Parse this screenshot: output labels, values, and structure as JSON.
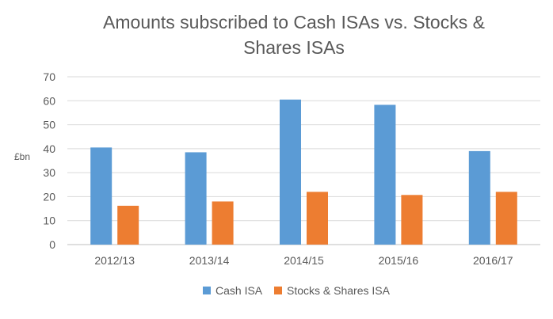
{
  "chart_data": {
    "type": "bar",
    "title_line1": "Amounts subscribed to Cash ISAs vs. Stocks &",
    "title_line2": "Shares ISAs",
    "xlabel": "",
    "ylabel": "£bn",
    "ylim": [
      0,
      70
    ],
    "yticks": [
      "0",
      "10",
      "20",
      "30",
      "40",
      "50",
      "60",
      "70"
    ],
    "grid": true,
    "legend_position": "bottom",
    "categories": [
      "2012/13",
      "2013/14",
      "2014/15",
      "2015/16",
      "2016/17"
    ],
    "series": [
      {
        "name": "Cash ISA",
        "color": "#5b9bd5",
        "values": [
          40.5,
          38.5,
          60.5,
          58.3,
          39.0
        ]
      },
      {
        "name": "Stocks & Shares ISA",
        "color": "#ed7d31",
        "values": [
          16.2,
          18.0,
          22.0,
          20.7,
          22.0
        ]
      }
    ]
  }
}
